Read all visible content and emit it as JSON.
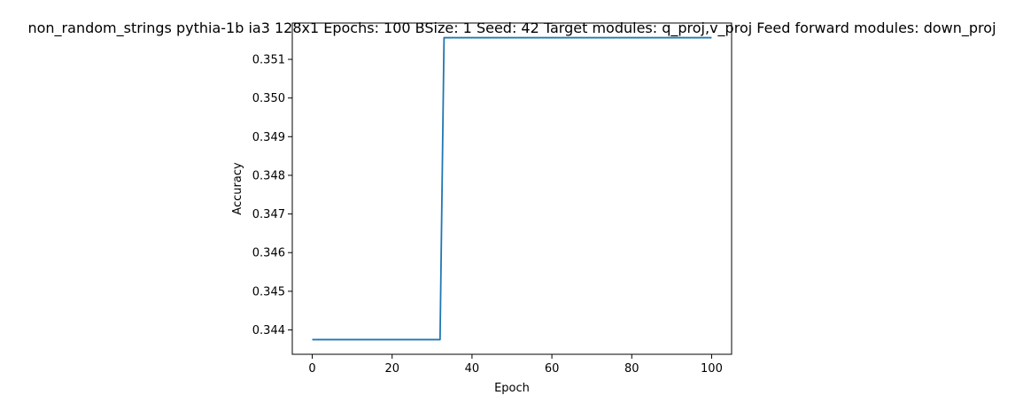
{
  "chart_data": {
    "type": "line",
    "title": "non_random_strings pythia-1b ia3 128x1 Epochs: 100 BSize: 1 Seed: 42 Target modules: q_proj,v_proj Feed forward modules: down_proj",
    "xlabel": "Epoch",
    "ylabel": "Accuracy",
    "xlim": [
      -5,
      105
    ],
    "ylim": [
      0.34337,
      0.35194
    ],
    "xticks": [
      0,
      20,
      40,
      60,
      80,
      100
    ],
    "yticks": [
      0.344,
      0.345,
      0.346,
      0.347,
      0.348,
      0.349,
      0.35,
      0.351
    ],
    "ytick_labels": [
      "0.344",
      "0.345",
      "0.346",
      "0.347",
      "0.348",
      "0.349",
      "0.350",
      "0.351"
    ],
    "grid": false,
    "legend": "none",
    "series": [
      {
        "color": "#1f77b4",
        "x": [
          0,
          32,
          33,
          100
        ],
        "values": [
          0.34375,
          0.34375,
          0.35156,
          0.35156
        ]
      }
    ]
  }
}
